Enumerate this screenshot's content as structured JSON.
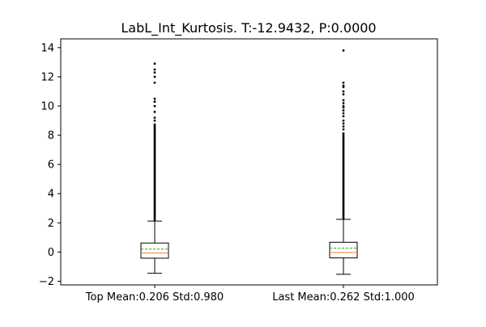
{
  "chart_data": {
    "type": "box",
    "title": "LabL_Int_Kurtosis. T:-12.9432, P:0.0000",
    "xlabel": "",
    "ylabel": "",
    "ylim": [
      -2.25,
      14.6
    ],
    "y_ticks": [
      -2,
      0,
      2,
      4,
      6,
      8,
      10,
      12,
      14
    ],
    "grid": false,
    "categories": [
      "Top Mean:0.206 Std:0.980",
      "Last Mean:0.262 Std:1.000"
    ],
    "boxes": [
      {
        "label": "Top Mean:0.206 Std:0.980",
        "whisker_low": -1.45,
        "q1": -0.42,
        "median": -0.07,
        "q3": 0.62,
        "whisker_high": 2.12,
        "mean": 0.206,
        "outliers_dense_range": [
          2.12,
          8.8
        ],
        "outliers": [
          9.0,
          9.2,
          9.6,
          10.0,
          10.3,
          10.5,
          11.6,
          12.0,
          12.3,
          12.5,
          12.9
        ]
      },
      {
        "label": "Last Mean:0.262 Std:1.000",
        "whisker_low": -1.52,
        "q1": -0.4,
        "median": -0.03,
        "q3": 0.67,
        "whisker_high": 2.24,
        "mean": 0.262,
        "outliers_dense_range": [
          2.24,
          8.2
        ],
        "outliers": [
          8.4,
          8.6,
          8.8,
          9.0,
          9.3,
          9.5,
          9.7,
          9.9,
          10.0,
          10.2,
          10.4,
          10.8,
          11.0,
          11.3,
          11.4,
          11.6,
          13.8
        ]
      }
    ],
    "colors": {
      "box": "#000000",
      "median": "#ff7f0e",
      "mean": "#2ca02c",
      "outlier": "#000000"
    }
  }
}
